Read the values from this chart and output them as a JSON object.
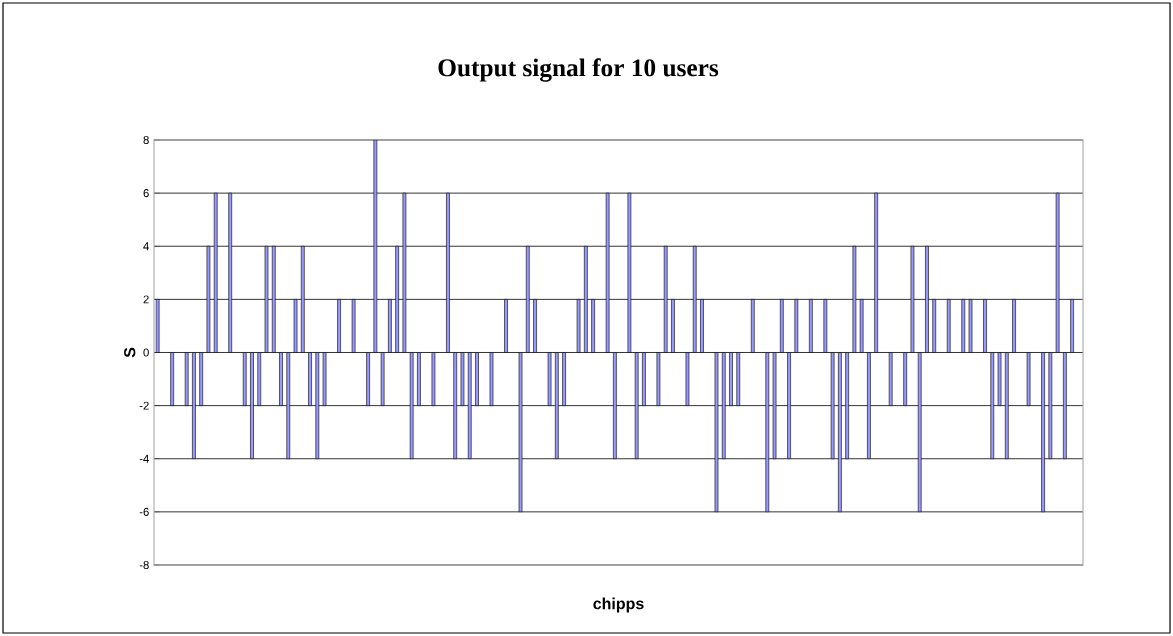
{
  "chart_data": {
    "type": "bar",
    "title": "Output signal for 10 users",
    "xlabel": "chipps",
    "ylabel": "S",
    "categories": [
      null,
      null,
      null,
      null,
      null,
      null,
      null,
      null,
      null,
      null,
      null,
      null,
      null,
      null,
      null,
      null,
      null,
      null,
      null,
      null,
      null,
      null,
      null,
      null,
      null,
      null,
      null,
      null,
      null,
      null,
      null,
      null,
      null,
      null,
      null,
      null,
      null,
      null,
      null,
      null,
      null,
      null,
      null,
      null,
      null,
      null,
      null,
      null,
      null,
      null,
      null,
      null,
      null,
      null,
      null,
      null,
      null,
      null,
      null,
      null,
      null,
      null,
      null,
      null,
      null,
      null,
      null,
      null,
      null,
      null,
      null,
      null,
      null,
      null,
      null,
      null,
      null,
      null,
      null,
      null,
      null,
      null,
      null,
      null,
      null,
      null,
      null,
      null,
      null,
      null,
      null,
      null,
      null,
      null,
      null,
      null,
      null,
      null,
      null,
      null,
      null,
      null,
      null,
      null,
      null,
      null,
      null,
      null,
      null,
      null,
      null,
      null,
      null,
      null,
      null,
      null,
      null,
      null,
      null,
      null,
      null,
      null,
      null,
      null,
      null,
      null,
      null,
      null
    ],
    "values": [
      2,
      null,
      -2,
      null,
      -2,
      -4,
      -2,
      4,
      6,
      null,
      6,
      null,
      -2,
      -4,
      -2,
      4,
      4,
      -2,
      -4,
      2,
      4,
      -2,
      -4,
      -2,
      null,
      2,
      null,
      2,
      null,
      -2,
      8,
      -2,
      2,
      4,
      6,
      -4,
      -2,
      null,
      -2,
      null,
      6,
      -4,
      -2,
      -4,
      -2,
      null,
      -2,
      null,
      2,
      null,
      -6,
      4,
      2,
      null,
      -2,
      -4,
      -2,
      null,
      2,
      4,
      2,
      null,
      6,
      -4,
      null,
      6,
      -4,
      -2,
      null,
      -2,
      4,
      2,
      null,
      -2,
      4,
      2,
      null,
      -6,
      -4,
      -2,
      -2,
      null,
      2,
      null,
      -6,
      -4,
      2,
      -4,
      2,
      null,
      2,
      null,
      2,
      -4,
      -6,
      -4,
      4,
      2,
      -4,
      6,
      null,
      -2,
      null,
      -2,
      4,
      -6,
      4,
      2,
      null,
      2,
      null,
      2,
      2,
      null,
      2,
      -4,
      -2,
      -4,
      2,
      null,
      -2,
      null,
      -6,
      -4,
      6,
      -4,
      2,
      null
    ],
    "color": "#9999ff",
    "ylim": [
      -8,
      8
    ],
    "yticks": [
      -8,
      -6,
      -4,
      -2,
      0,
      2,
      4,
      6,
      8
    ],
    "grid": "y",
    "tick_labels": "y"
  }
}
